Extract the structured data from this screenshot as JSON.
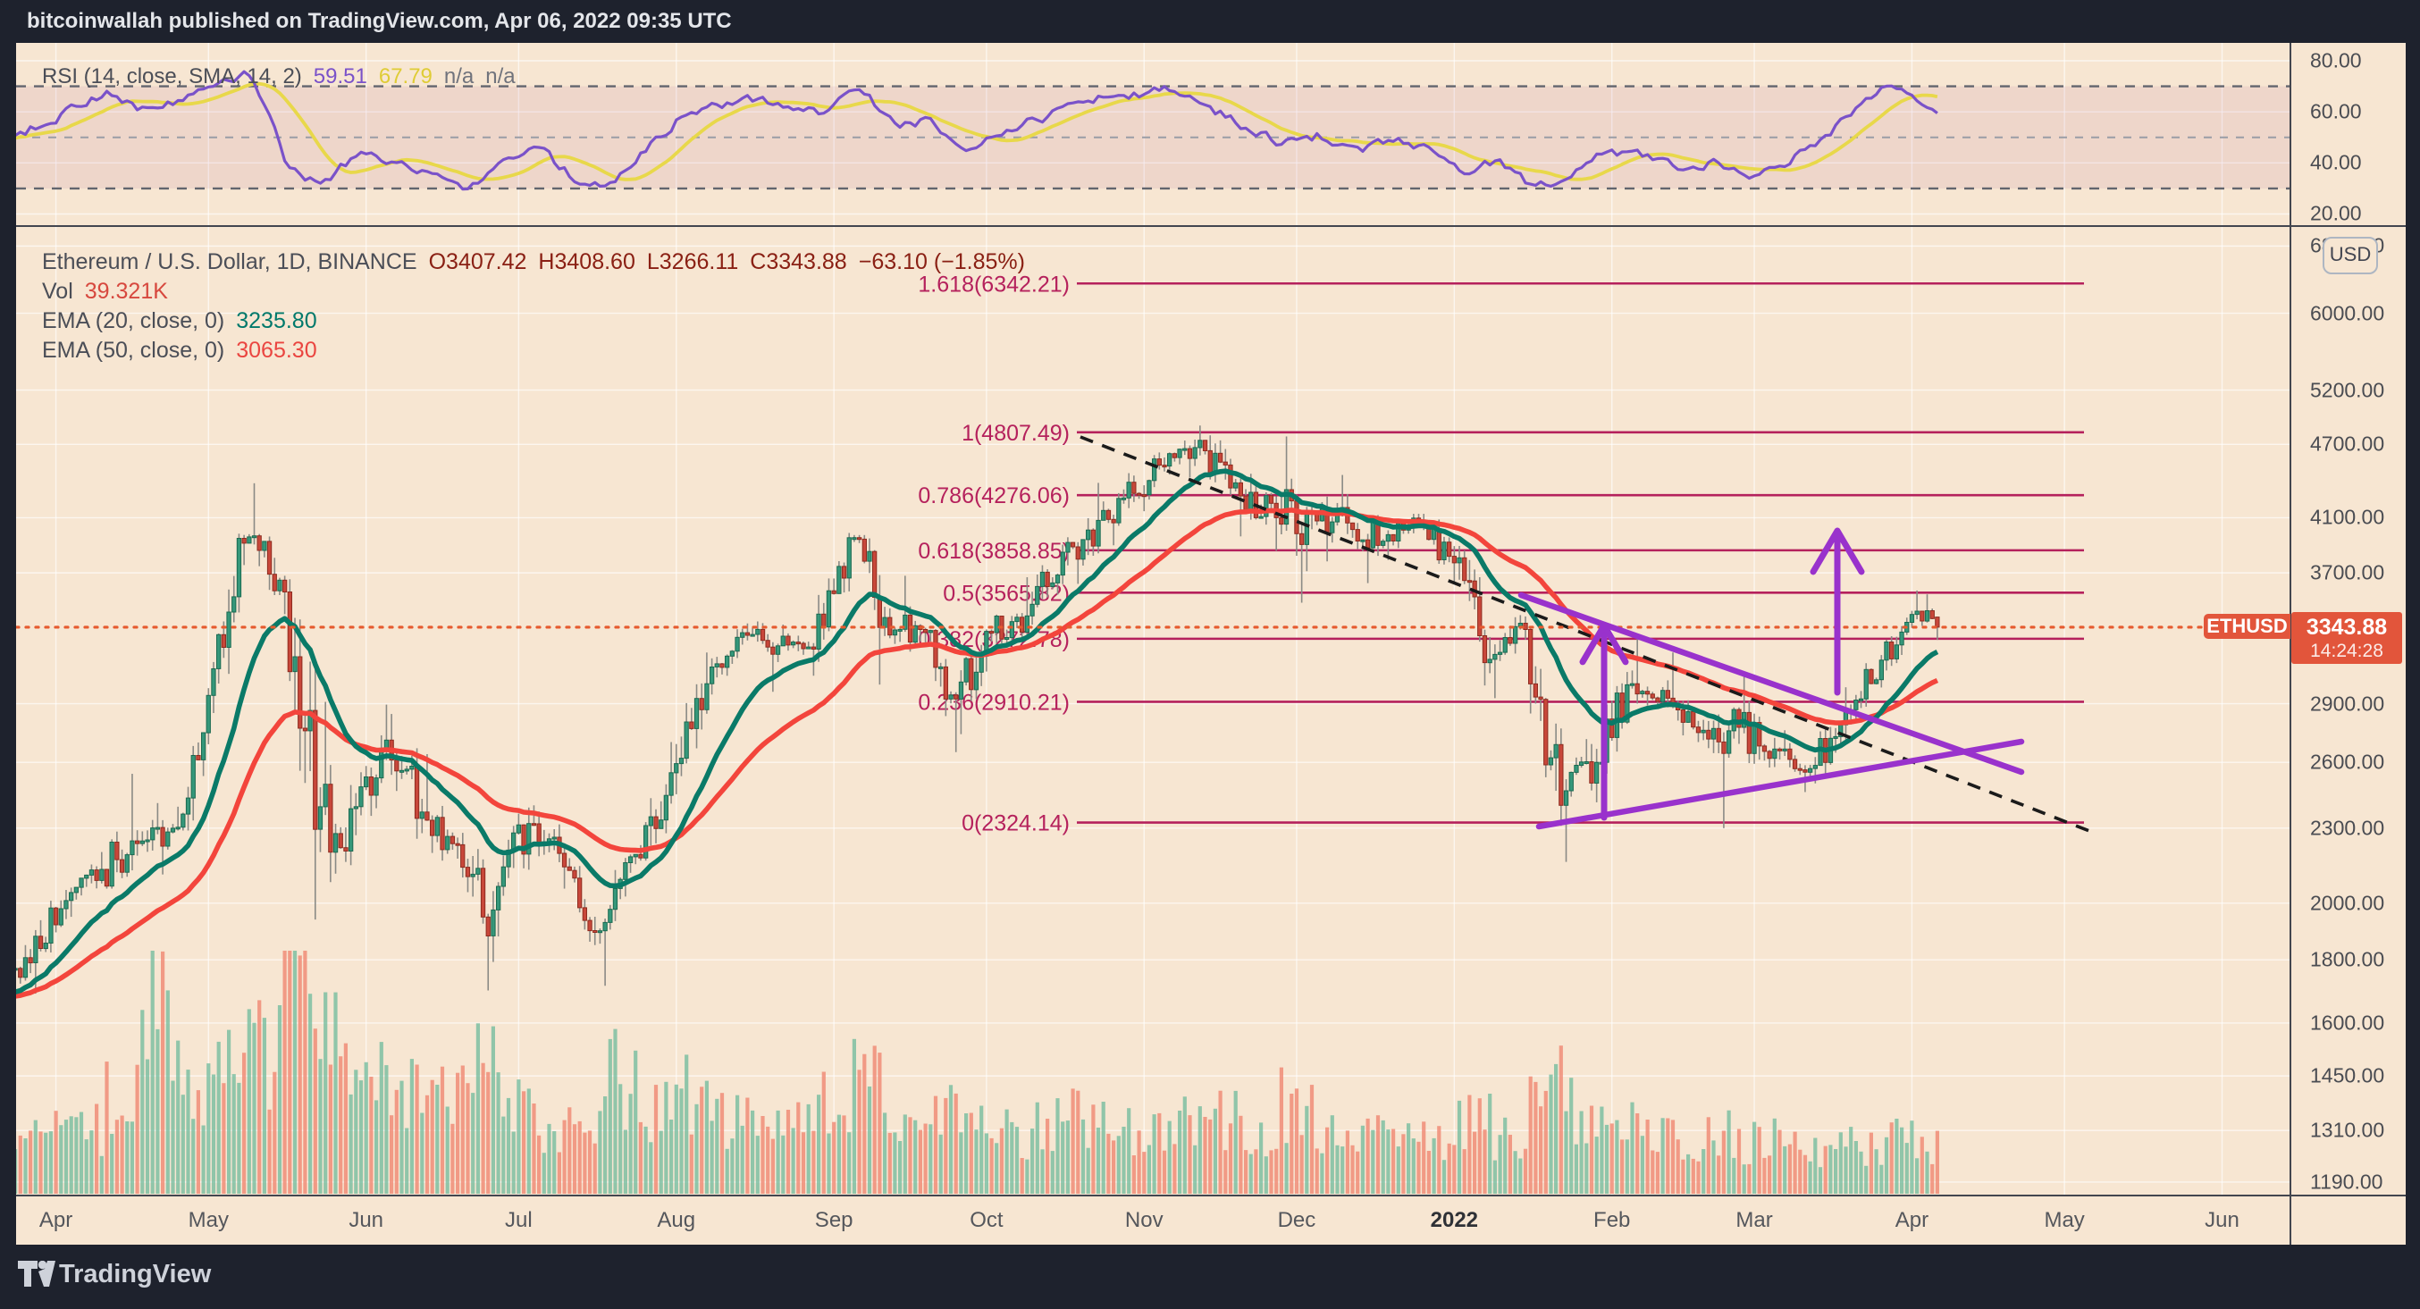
{
  "header": {
    "text": "bitcoinwallah published on TradingView.com, Apr 06, 2022 09:35 UTC"
  },
  "rsi_pane": {
    "legend": {
      "title": "RSI (14, close, SMA, 14, 2)",
      "rsi_value": "59.51",
      "sma_value": "67.79",
      "band1": "n/a",
      "band2": "n/a"
    },
    "ticks": [
      {
        "label": "80.00",
        "v": 80
      },
      {
        "label": "60.00",
        "v": 60
      },
      {
        "label": "40.00",
        "v": 40
      },
      {
        "label": "20.00",
        "v": 20
      }
    ],
    "upper_band": 70,
    "lower_band": 30,
    "middle": 50
  },
  "main_pane": {
    "legend": {
      "title": "Ethereum / U.S. Dollar, 1D, BINANCE",
      "open": "O3407.42",
      "high": "H3408.60",
      "low": "L3266.11",
      "close": "C3343.88",
      "change": "−63.10 (−1.85%)",
      "vol_label": "Vol",
      "vol_value": "39.321K",
      "ema20_label": "EMA (20, close, 0)",
      "ema20_value": "3235.80",
      "ema50_label": "EMA (50, close, 0)",
      "ema50_value": "3065.30"
    },
    "price_ticks": [
      {
        "label": "6800.00",
        "price": 6800
      },
      {
        "label": "6000.00",
        "price": 6000
      },
      {
        "label": "5200.00",
        "price": 5200
      },
      {
        "label": "4700.00",
        "price": 4700
      },
      {
        "label": "4100.00",
        "price": 4100
      },
      {
        "label": "3700.00",
        "price": 3700
      },
      {
        "label": "2900.00",
        "price": 2900
      },
      {
        "label": "2600.00",
        "price": 2600
      },
      {
        "label": "2300.00",
        "price": 2300
      },
      {
        "label": "2000.00",
        "price": 2000
      },
      {
        "label": "1800.00",
        "price": 1800
      },
      {
        "label": "1600.00",
        "price": 1600
      },
      {
        "label": "1450.00",
        "price": 1450
      },
      {
        "label": "1310.00",
        "price": 1310
      },
      {
        "label": "1190.00",
        "price": 1190
      }
    ],
    "usd_button": "USD",
    "ethusd_tag": "ETHUSD",
    "price_tag": {
      "price": "3343.88",
      "countdown": "14:24:28"
    }
  },
  "time_axis": {
    "ticks": [
      {
        "label": "Apr",
        "day": 11
      },
      {
        "label": "May",
        "day": 41
      },
      {
        "label": "Jun",
        "day": 72
      },
      {
        "label": "Jul",
        "day": 102
      },
      {
        "label": "Aug",
        "day": 133
      },
      {
        "label": "Sep",
        "day": 164
      },
      {
        "label": "Oct",
        "day": 194
      },
      {
        "label": "Nov",
        "day": 225
      },
      {
        "label": "Dec",
        "day": 255
      },
      {
        "label": "2022",
        "day": 286,
        "bold": true
      },
      {
        "label": "Feb",
        "day": 317
      },
      {
        "label": "Mar",
        "day": 345
      },
      {
        "label": "Apr",
        "day": 376
      },
      {
        "label": "May",
        "day": 406
      },
      {
        "label": "Jun",
        "day": 437
      }
    ]
  },
  "footer": {
    "brand": "TradingView"
  },
  "colors": {
    "frame": "#1e222d",
    "pane_bg": "#f7e6d2",
    "grid": "rgba(255,255,255,0.65)",
    "up": "#35977a",
    "up_border": "#1a6a50",
    "down": "#c8473a",
    "down_border": "#8e2b1f",
    "wick": "#8a8a85",
    "vol_up": "rgba(110,185,155,0.75)",
    "vol_down": "rgba(240,140,120,0.85)",
    "ema20": "#0a7a68",
    "ema50": "#f3453c",
    "rsi_line": "#7a52c9",
    "rsi_sma": "#e8d84a",
    "rsi_band_fill": "rgba(150,60,120,0.09)",
    "rsi_band_line": "#62656e",
    "rsi_mid_line": "#9a9da6",
    "fib": "#b5215c",
    "drawing": "#9932cc",
    "dashed_trendline": "#1b1b1b",
    "price_line": "#e65a2e",
    "tag_bg": "#e2553b",
    "separator": "#43464f"
  },
  "chart_data": {
    "type": "candlestick",
    "title": "Ethereum / U.S. Dollar",
    "symbol": "ETHUSD",
    "exchange": "BINANCE",
    "timeframe": "1D",
    "y_axis": {
      "scale": "log",
      "unit": "USD",
      "visible_range": [
        1150,
        7000
      ]
    },
    "x_range": {
      "start": "2021-03-21",
      "end": "2022-06-12",
      "plotted_days": 382
    },
    "last_candle": {
      "open": 3407.42,
      "high": 3408.6,
      "low": 3266.11,
      "close": 3343.88,
      "change": -63.1,
      "change_pct": -1.85
    },
    "indicators": {
      "volume_k_today": 39.321,
      "ema20": 3235.8,
      "ema50": 3065.3,
      "rsi": 59.51,
      "rsi_sma": 67.79
    },
    "fibonacci": {
      "high": 4807.49,
      "low": 2324.14,
      "levels": [
        {
          "level": "1.618",
          "value": "6342.21",
          "price": 6342.21
        },
        {
          "level": "1",
          "value": "4807.49",
          "price": 4807.49
        },
        {
          "level": "0.786",
          "value": "4276.06",
          "price": 4276.06
        },
        {
          "level": "0.618",
          "value": "3858.85",
          "price": 3858.85
        },
        {
          "level": "0.5",
          "value": "3565.82",
          "price": 3565.82
        },
        {
          "level": "0.382",
          "value": "3272.78",
          "price": 3272.78
        },
        {
          "level": "0.236",
          "value": "2910.21",
          "price": 2910.21
        },
        {
          "level": "0",
          "value": "2324.14",
          "price": 2324.14
        }
      ]
    },
    "weekly_candles": [
      [
        1680,
        1850,
        1535,
        1790
      ],
      [
        1790,
        2050,
        1690,
        2010
      ],
      [
        2010,
        2200,
        1950,
        2130
      ],
      [
        2130,
        2545,
        2055,
        2235
      ],
      [
        2235,
        2410,
        2110,
        2300
      ],
      [
        2300,
        2985,
        2290,
        2945
      ],
      [
        2945,
        3980,
        2850,
        3910
      ],
      [
        3910,
        4372,
        3550,
        3650
      ],
      [
        3650,
        3680,
        1940,
        2295
      ],
      [
        2295,
        2910,
        2080,
        2385
      ],
      [
        2385,
        2895,
        2270,
        2710
      ],
      [
        2710,
        2845,
        2255,
        2370
      ],
      [
        2370,
        2640,
        2165,
        2230
      ],
      [
        2230,
        2280,
        1700,
        1975
      ],
      [
        1975,
        2390,
        1880,
        2320
      ],
      [
        2320,
        2400,
        2055,
        2140
      ],
      [
        2140,
        2175,
        1850,
        1900
      ],
      [
        1900,
        2190,
        1715,
        2190
      ],
      [
        2190,
        2700,
        2165,
        2550
      ],
      [
        2550,
        3190,
        2450,
        3010
      ],
      [
        3010,
        3335,
        2950,
        3310
      ],
      [
        3310,
        3380,
        2965,
        3230
      ],
      [
        3230,
        3360,
        3055,
        3210
      ],
      [
        3210,
        3985,
        3135,
        3950
      ],
      [
        3950,
        3970,
        3005,
        3405
      ],
      [
        3405,
        3680,
        3195,
        3330
      ],
      [
        3330,
        3340,
        2650,
        2925
      ],
      [
        2925,
        3330,
        2740,
        3310
      ],
      [
        3310,
        3670,
        3245,
        3415
      ],
      [
        3415,
        3900,
        3360,
        3845
      ],
      [
        3845,
        4375,
        3625,
        4080
      ],
      [
        4080,
        4455,
        3895,
        4290
      ],
      [
        4290,
        4630,
        4150,
        4620
      ],
      [
        4620,
        4868,
        4420,
        4645
      ],
      [
        4645,
        4780,
        3960,
        4270
      ],
      [
        4270,
        4450,
        3855,
        4100
      ],
      [
        4100,
        4770,
        3500,
        4130
      ],
      [
        4130,
        4440,
        3780,
        4060
      ],
      [
        4060,
        4120,
        3630,
        3925
      ],
      [
        3925,
        4130,
        3790,
        4065
      ],
      [
        4065,
        4130,
        3640,
        3770
      ],
      [
        3770,
        3890,
        3000,
        3150
      ],
      [
        3150,
        3420,
        2930,
        3330
      ],
      [
        3330,
        3340,
        2310,
        2400
      ],
      [
        2400,
        2715,
        2160,
        2600
      ],
      [
        2600,
        3085,
        2470,
        3010
      ],
      [
        3010,
        3280,
        2880,
        2930
      ],
      [
        2930,
        3190,
        2700,
        2760
      ],
      [
        2760,
        2880,
        2300,
        2775
      ],
      [
        2775,
        3060,
        2575,
        2665
      ],
      [
        2665,
        2760,
        2460,
        2570
      ],
      [
        2570,
        2990,
        2500,
        2860
      ],
      [
        2860,
        3175,
        2790,
        3145
      ],
      [
        3145,
        3580,
        3085,
        3445
      ],
      [
        3445,
        3555,
        3266.11,
        3343.88
      ]
    ],
    "weekly_volume_k": [
      420,
      480,
      520,
      800,
      1500,
      900,
      950,
      1100,
      1900,
      1300,
      900,
      800,
      750,
      1100,
      700,
      600,
      650,
      950,
      700,
      800,
      650,
      600,
      520,
      700,
      900,
      620,
      700,
      560,
      500,
      560,
      600,
      560,
      500,
      560,
      600,
      520,
      750,
      520,
      460,
      410,
      430,
      620,
      460,
      850,
      680,
      520,
      460,
      420,
      500,
      430,
      390,
      360,
      390,
      430,
      400
    ],
    "weekly_rsi": [
      50,
      55,
      62,
      68,
      60,
      66,
      73,
      75,
      36,
      33,
      45,
      40,
      34,
      27,
      42,
      46,
      34,
      30,
      46,
      58,
      63,
      66,
      61,
      60,
      70,
      54,
      57,
      44,
      52,
      57,
      62,
      68,
      66,
      70,
      60,
      53,
      47,
      51,
      44,
      50,
      45,
      37,
      41,
      29,
      36,
      46,
      42,
      38,
      41,
      35,
      39,
      49,
      60,
      74,
      59.5
    ],
    "drawings": {
      "triangle_upper": {
        "x1": 1702,
        "y1": 666,
        "x2": 2262,
        "y2": 864
      },
      "triangle_lower": {
        "x1": 1722,
        "y1": 925,
        "x2": 2262,
        "y2": 830
      },
      "measure_arrow": {
        "x": 1795,
        "y_base": 915,
        "y_tip": 700
      },
      "breakout_arrow": {
        "x": 2056,
        "y_base": 775,
        "y_tip": 594
      },
      "dashed_trendline": {
        "x1": 1209,
        "y1": 489,
        "x2": 2338,
        "y2": 930
      }
    }
  }
}
